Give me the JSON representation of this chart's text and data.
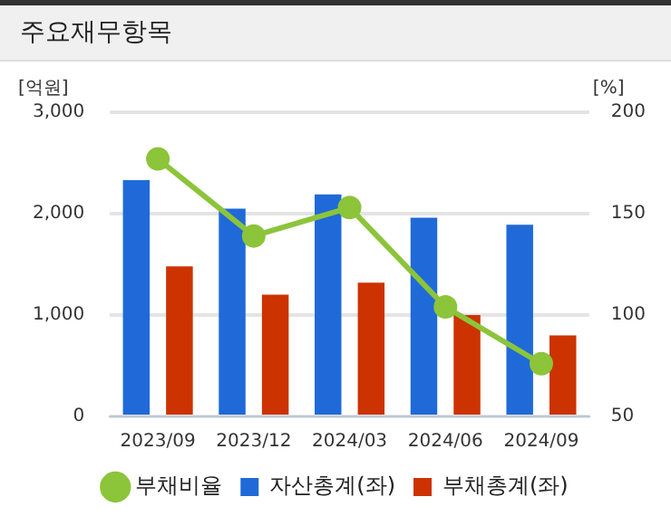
{
  "chart_data": {
    "type": "bar",
    "title": "주요재무항목",
    "ylabel": "[억원]",
    "y2label": "[%]",
    "categories": [
      "2023/09",
      "2023/12",
      "2024/03",
      "2024/06",
      "2024/09"
    ],
    "series": [
      {
        "name": "자산총계(좌)",
        "color": "#1f6ad8",
        "values": [
          2330,
          2050,
          2190,
          1960,
          1890
        ]
      },
      {
        "name": "부채총계(좌)",
        "color": "#cc3300",
        "values": [
          1480,
          1200,
          1320,
          1000,
          800
        ]
      },
      {
        "name": "부채비율",
        "type": "line",
        "axis": "y2",
        "color": "#8cc43a",
        "values": [
          177,
          139,
          153,
          104,
          76
        ]
      }
    ],
    "ylim": [
      0,
      3000
    ],
    "yticks": [
      {
        "value": 0,
        "label": "0"
      },
      {
        "value": 1000,
        "label": "1,000"
      },
      {
        "value": 2000,
        "label": "2,000"
      },
      {
        "value": 3000,
        "label": "3,000"
      }
    ],
    "y2lim": [
      50,
      200
    ],
    "y2ticks": [
      50,
      100,
      150,
      200
    ],
    "grid": "y",
    "legend": "bottom",
    "marker": "circle"
  }
}
